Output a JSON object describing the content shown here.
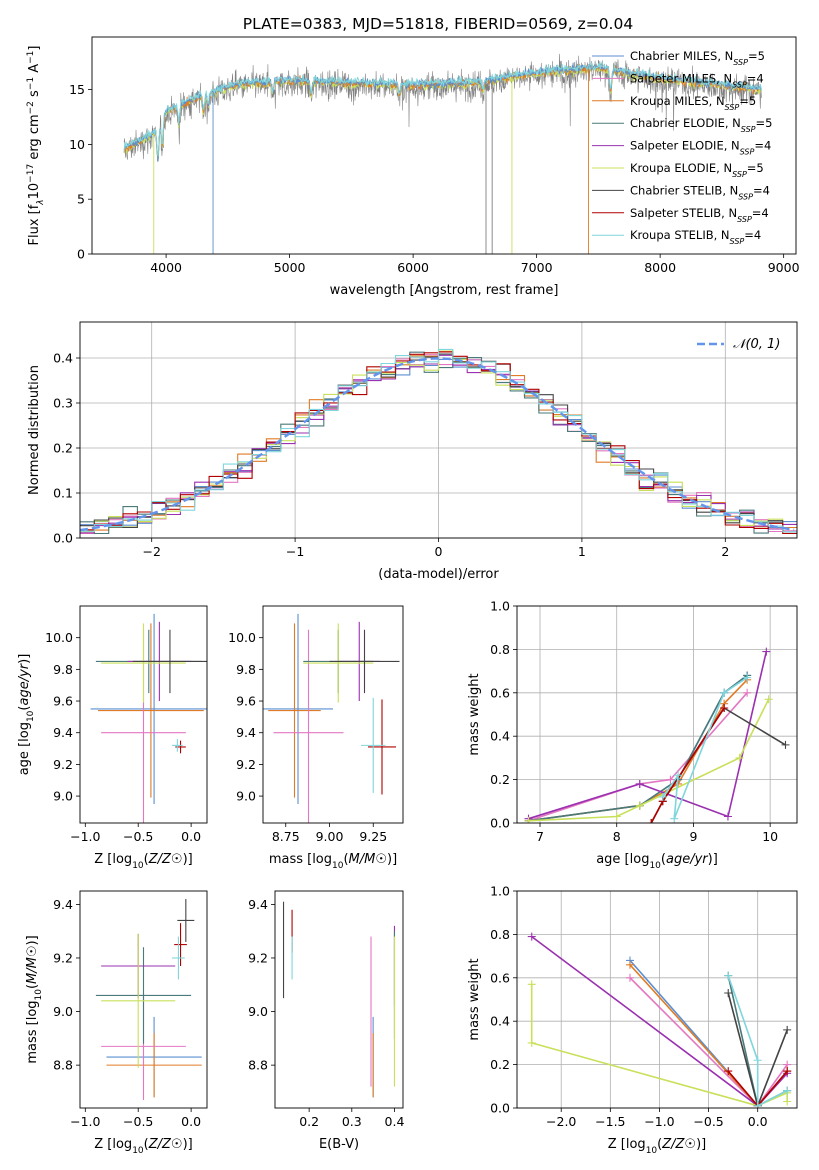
{
  "figure": {
    "title": "PLATE=0383, MJD=51818, FIBERID=0569, z=0.04"
  },
  "colors": {
    "chabrier_miles": "#5b8fd0",
    "salpeter_miles": "#e377c2",
    "kroupa_miles": "#e07b27",
    "chabrier_elodie": "#4a7a7a",
    "salpeter_elodie": "#9b30b0",
    "kroupa_elodie": "#c8e05a",
    "chabrier_stelib": "#444444",
    "salpeter_stelib": "#b00000",
    "kroupa_stelib": "#7fd6dc",
    "spectrum_data": "#808080",
    "normal_curve": "#6495ed",
    "grid": "#b0b0b0"
  },
  "legend": [
    {
      "label": "Chabrier MILES, N",
      "sub": "SSP",
      "tail": "=5",
      "color_key": "chabrier_miles"
    },
    {
      "label": "Salpeter MILES, N",
      "sub": "SSP",
      "tail": "=4",
      "color_key": "salpeter_miles"
    },
    {
      "label": "Kroupa MILES, N",
      "sub": "SSP",
      "tail": "=5",
      "color_key": "kroupa_miles"
    },
    {
      "label": "Chabrier ELODIE, N",
      "sub": "SSP",
      "tail": "=5",
      "color_key": "chabrier_elodie"
    },
    {
      "label": "Salpeter ELODIE, N",
      "sub": "SSP",
      "tail": "=4",
      "color_key": "salpeter_elodie"
    },
    {
      "label": "Kroupa ELODIE, N",
      "sub": "SSP",
      "tail": "=5",
      "color_key": "kroupa_elodie"
    },
    {
      "label": "Chabrier STELIB, N",
      "sub": "SSP",
      "tail": "=4",
      "color_key": "chabrier_stelib"
    },
    {
      "label": "Salpeter STELIB, N",
      "sub": "SSP",
      "tail": "=4",
      "color_key": "salpeter_stelib"
    },
    {
      "label": "Kroupa STELIB, N",
      "sub": "SSP",
      "tail": "=4",
      "color_key": "kroupa_stelib"
    }
  ],
  "chart_data": [
    {
      "id": "spectrum",
      "type": "line",
      "xlabel": "wavelength [Angstrom, rest frame]",
      "ylabel_parts": [
        "Flux [f",
        "λ",
        "10",
        "−17",
        " erg cm",
        "−2",
        " s",
        "−1",
        " A",
        "−1",
        "]"
      ],
      "xlim": [
        3400,
        9100
      ],
      "ylim": [
        0,
        19.8
      ],
      "xticks": [
        4000,
        5000,
        6000,
        7000,
        8000,
        9000
      ],
      "yticks": [
        0,
        5,
        10,
        15
      ],
      "continuum_anchors": [
        [
          3650,
          9.5
        ],
        [
          3900,
          11
        ],
        [
          4000,
          13
        ],
        [
          4300,
          14.5
        ],
        [
          4600,
          15.5
        ],
        [
          5000,
          15.8
        ],
        [
          5500,
          15.6
        ],
        [
          6000,
          15.4
        ],
        [
          6500,
          15.6
        ],
        [
          7000,
          16.5
        ],
        [
          7500,
          17
        ],
        [
          8000,
          16
        ],
        [
          8400,
          15.5
        ],
        [
          8820,
          15
        ]
      ],
      "dropouts": [
        {
          "x": 3900,
          "color_key": "kroupa_elodie"
        },
        {
          "x": 4380,
          "color_key": "chabrier_miles"
        },
        {
          "x": 6590,
          "color_key": "spectrum_data"
        },
        {
          "x": 6640,
          "color_key": "spectrum_data"
        },
        {
          "x": 6800,
          "color_key": "kroupa_elodie"
        },
        {
          "x": 7420,
          "color_key": "kroupa_miles"
        }
      ],
      "grid": false,
      "legend_position": "top-right"
    },
    {
      "id": "residuals",
      "type": "step",
      "xlabel": "(data-model)/error",
      "ylabel": "Normed distribution",
      "xlim": [
        -2.5,
        2.5
      ],
      "ylim": [
        0,
        0.48
      ],
      "xticks": [
        -2,
        -1,
        0,
        1,
        2
      ],
      "yticks": [
        0.0,
        0.1,
        0.2,
        0.3,
        0.4
      ],
      "bin_width": 0.1,
      "normal_label": "𝒩(0, 1)",
      "grid": true,
      "legend_position": "top-right"
    },
    {
      "id": "age_vs_Z",
      "type": "errorbar",
      "xlabel": "Z [log10(Z/Z☉)]",
      "ylabel": "age  [log10(age/yr)]",
      "xlim": [
        -1.05,
        0.15
      ],
      "ylim": [
        8.83,
        10.2
      ],
      "xticks": [
        -1.0,
        -0.5,
        0.0
      ],
      "yticks": [
        9.0,
        9.2,
        9.4,
        9.6,
        9.8,
        10.0
      ],
      "points": [
        {
          "color_key": "chabrier_miles",
          "x": -0.35,
          "xerr": 0.6,
          "y": 9.55,
          "yerr": 0.6
        },
        {
          "color_key": "kroupa_miles",
          "x": -0.38,
          "xerr": 0.5,
          "y": 9.54,
          "yerr": 0.55
        },
        {
          "color_key": "salpeter_miles",
          "x": -0.45,
          "xerr": 0.4,
          "y": 9.4,
          "yerr": 0.65
        },
        {
          "color_key": "chabrier_elodie",
          "x": -0.4,
          "xerr": 0.5,
          "y": 9.85,
          "yerr": 0.2
        },
        {
          "color_key": "salpeter_elodie",
          "x": -0.3,
          "xerr": 0.3,
          "y": 9.85,
          "yerr": 0.25
        },
        {
          "color_key": "kroupa_elodie",
          "x": -0.45,
          "xerr": 0.4,
          "y": 9.84,
          "yerr": 0.25
        },
        {
          "color_key": "chabrier_stelib",
          "x": -0.2,
          "xerr": 0.35,
          "y": 9.85,
          "yerr": 0.2
        },
        {
          "color_key": "salpeter_stelib",
          "x": -0.1,
          "xerr": 0.05,
          "y": 9.31,
          "yerr": 0.04
        },
        {
          "color_key": "kroupa_stelib",
          "x": -0.13,
          "xerr": 0.05,
          "y": 9.32,
          "yerr": 0.04
        }
      ]
    },
    {
      "id": "age_vs_mass",
      "type": "errorbar",
      "xlabel": "mass [log10(M/M☉)]",
      "ylabel": "",
      "xlim": [
        8.62,
        9.42
      ],
      "ylim": [
        8.83,
        10.2
      ],
      "xticks": [
        8.75,
        9.0,
        9.25
      ],
      "yticks": [
        9.0,
        9.2,
        9.4,
        9.6,
        9.8,
        10.0
      ],
      "points": [
        {
          "color_key": "chabrier_miles",
          "x": 8.82,
          "xerr": 0.2,
          "y": 9.55,
          "yerr": 0.6
        },
        {
          "color_key": "kroupa_miles",
          "x": 8.8,
          "xerr": 0.15,
          "y": 9.54,
          "yerr": 0.55
        },
        {
          "color_key": "salpeter_miles",
          "x": 8.88,
          "xerr": 0.2,
          "y": 9.4,
          "yerr": 0.65
        },
        {
          "color_key": "chabrier_elodie",
          "x": 9.05,
          "xerr": 0.2,
          "y": 9.85,
          "yerr": 0.2
        },
        {
          "color_key": "salpeter_elodie",
          "x": 9.17,
          "xerr": 0.12,
          "y": 9.85,
          "yerr": 0.25
        },
        {
          "color_key": "kroupa_elodie",
          "x": 9.05,
          "xerr": 0.2,
          "y": 9.84,
          "yerr": 0.25
        },
        {
          "color_key": "chabrier_stelib",
          "x": 9.2,
          "xerr": 0.2,
          "y": 9.85,
          "yerr": 0.2
        },
        {
          "color_key": "salpeter_stelib",
          "x": 9.3,
          "xerr": 0.08,
          "y": 9.31,
          "yerr": 0.3
        },
        {
          "color_key": "kroupa_stelib",
          "x": 9.25,
          "xerr": 0.07,
          "y": 9.32,
          "yerr": 0.3
        }
      ]
    },
    {
      "id": "weight_vs_age",
      "type": "line",
      "xlabel": "age  [log10(age/yr)]",
      "ylabel": "mass weight",
      "xlim": [
        6.7,
        10.35
      ],
      "ylim": [
        0,
        1.0
      ],
      "xticks": [
        7,
        8,
        9,
        10
      ],
      "yticks": [
        0.0,
        0.2,
        0.4,
        0.6,
        0.8,
        1.0
      ],
      "grid": true,
      "series": [
        {
          "color_key": "chabrier_miles",
          "x": [
            6.85,
            8.3,
            8.8,
            9.4,
            9.7
          ],
          "y": [
            0.01,
            0.08,
            0.2,
            0.6,
            0.68
          ]
        },
        {
          "color_key": "salpeter_miles",
          "x": [
            6.85,
            8.3,
            8.7,
            9.7
          ],
          "y": [
            0.01,
            0.18,
            0.2,
            0.6
          ]
        },
        {
          "color_key": "kroupa_miles",
          "x": [
            6.85,
            8.3,
            8.8,
            9.4,
            9.7
          ],
          "y": [
            0.01,
            0.08,
            0.18,
            0.55,
            0.66
          ]
        },
        {
          "color_key": "chabrier_elodie",
          "x": [
            6.85,
            8.3,
            8.8,
            9.4,
            9.7
          ],
          "y": [
            0.01,
            0.08,
            0.2,
            0.6,
            0.68
          ]
        },
        {
          "color_key": "salpeter_elodie",
          "x": [
            6.85,
            8.3,
            9.45,
            9.95
          ],
          "y": [
            0.02,
            0.18,
            0.03,
            0.79
          ]
        },
        {
          "color_key": "kroupa_elodie",
          "x": [
            6.85,
            8.0,
            8.3,
            9.6,
            9.98
          ],
          "y": [
            0.01,
            0.03,
            0.08,
            0.3,
            0.57
          ]
        },
        {
          "color_key": "chabrier_stelib",
          "x": [
            8.45,
            8.6,
            9.4,
            10.2
          ],
          "y": [
            0.0,
            0.1,
            0.53,
            0.36
          ]
        },
        {
          "color_key": "salpeter_stelib",
          "x": [
            8.45,
            8.6,
            9.4
          ],
          "y": [
            0.0,
            0.1,
            0.53
          ]
        },
        {
          "color_key": "kroupa_stelib",
          "x": [
            8.6,
            8.8,
            8.75,
            9.4,
            9.7
          ],
          "y": [
            0.12,
            0.22,
            0.02,
            0.6,
            0.67
          ]
        }
      ]
    },
    {
      "id": "mass_vs_Z",
      "type": "errorbar",
      "xlabel": "Z [log10(Z/Z☉)]",
      "ylabel": "mass [log10(M/M☉)]",
      "xlim": [
        -1.05,
        0.15
      ],
      "ylim": [
        8.64,
        9.45
      ],
      "xticks": [
        -1.0,
        -0.5,
        0.0
      ],
      "yticks": [
        8.8,
        9.0,
        9.2,
        9.4
      ],
      "points": [
        {
          "color_key": "chabrier_miles",
          "x": -0.35,
          "xerr": 0.45,
          "y": 8.83,
          "yerr": 0.15
        },
        {
          "color_key": "kroupa_miles",
          "x": -0.35,
          "xerr": 0.45,
          "y": 8.8,
          "yerr": 0.12
        },
        {
          "color_key": "salpeter_miles",
          "x": -0.45,
          "xerr": 0.4,
          "y": 8.87,
          "yerr": 0.2
        },
        {
          "color_key": "chabrier_elodie",
          "x": -0.45,
          "xerr": 0.45,
          "y": 9.06,
          "yerr": 0.18
        },
        {
          "color_key": "salpeter_elodie",
          "x": -0.5,
          "xerr": 0.35,
          "y": 9.17,
          "yerr": 0.12
        },
        {
          "color_key": "kroupa_elodie",
          "x": -0.5,
          "xerr": 0.35,
          "y": 9.04,
          "yerr": 0.25
        },
        {
          "color_key": "chabrier_stelib",
          "x": -0.05,
          "xerr": 0.08,
          "y": 9.34,
          "yerr": 0.08
        },
        {
          "color_key": "salpeter_stelib",
          "x": -0.1,
          "xerr": 0.06,
          "y": 9.25,
          "yerr": 0.08
        },
        {
          "color_key": "kroupa_stelib",
          "x": -0.12,
          "xerr": 0.06,
          "y": 9.2,
          "yerr": 0.08
        }
      ]
    },
    {
      "id": "mass_vs_ebv",
      "type": "errorbar",
      "xlabel": "E(B-V)",
      "ylabel": "",
      "xlim": [
        0.12,
        0.42
      ],
      "ylim": [
        8.64,
        9.45
      ],
      "xticks": [
        0.2,
        0.3,
        0.4
      ],
      "yticks": [
        8.8,
        9.0,
        9.2,
        9.4
      ],
      "points": [
        {
          "color_key": "chabrier_stelib",
          "x": 0.14,
          "xerr": 0,
          "y": 9.23,
          "yerr": 0.18
        },
        {
          "color_key": "salpeter_stelib",
          "x": 0.16,
          "xerr": 0,
          "y": 9.3,
          "yerr": 0.08
        },
        {
          "color_key": "kroupa_stelib",
          "x": 0.16,
          "xerr": 0,
          "y": 9.2,
          "yerr": 0.08
        },
        {
          "color_key": "salpeter_miles",
          "x": 0.345,
          "xerr": 0,
          "y": 9.0,
          "yerr": 0.28
        },
        {
          "color_key": "chabrier_miles",
          "x": 0.35,
          "xerr": 0,
          "y": 8.83,
          "yerr": 0.15
        },
        {
          "color_key": "kroupa_miles",
          "x": 0.35,
          "xerr": 0,
          "y": 8.8,
          "yerr": 0.12
        },
        {
          "color_key": "salpeter_elodie",
          "x": 0.4,
          "xerr": 0,
          "y": 9.17,
          "yerr": 0.15
        },
        {
          "color_key": "chabrier_elodie",
          "x": 0.4,
          "xerr": 0,
          "y": 9.1,
          "yerr": 0.2
        },
        {
          "color_key": "kroupa_elodie",
          "x": 0.4,
          "xerr": 0,
          "y": 9.0,
          "yerr": 0.28
        }
      ]
    },
    {
      "id": "weight_vs_Z",
      "type": "line",
      "xlabel": "Z [log10(Z/Z☉)]",
      "ylabel": "mass weight",
      "xlim": [
        -2.45,
        0.4
      ],
      "ylim": [
        0,
        1.0
      ],
      "xticks": [
        -2.0,
        -1.5,
        -1.0,
        -0.5,
        0.0
      ],
      "yticks": [
        0.0,
        0.2,
        0.4,
        0.6,
        0.8,
        1.0
      ],
      "grid": true,
      "series": [
        {
          "color_key": "chabrier_miles",
          "x": [
            -1.3,
            0.0,
            0.3
          ],
          "y": [
            0.68,
            0.01,
            0.17
          ]
        },
        {
          "color_key": "salpeter_miles",
          "x": [
            -1.3,
            0.0,
            0.3
          ],
          "y": [
            0.6,
            0.01,
            0.2
          ]
        },
        {
          "color_key": "kroupa_miles",
          "x": [
            -1.3,
            0.0,
            0.3
          ],
          "y": [
            0.66,
            0.01,
            0.17
          ]
        },
        {
          "color_key": "chabrier_elodie",
          "x": [
            -0.3,
            0.0,
            0.3
          ],
          "y": [
            0.61,
            0.01,
            0.08
          ]
        },
        {
          "color_key": "salpeter_elodie",
          "x": [
            -2.3,
            0.0,
            0.3
          ],
          "y": [
            0.79,
            0.01,
            0.16
          ]
        },
        {
          "color_key": "kroupa_elodie",
          "x": [
            -2.3,
            -2.3,
            0.0,
            0.3,
            0.3
          ],
          "y": [
            0.57,
            0.3,
            0.01,
            0.07,
            0.03
          ]
        },
        {
          "color_key": "chabrier_stelib",
          "x": [
            -0.3,
            0.0,
            0.3
          ],
          "y": [
            0.53,
            0.01,
            0.36
          ]
        },
        {
          "color_key": "salpeter_stelib",
          "x": [
            -0.3,
            0.0,
            0.3
          ],
          "y": [
            0.17,
            0.01,
            0.17
          ]
        },
        {
          "color_key": "kroupa_stelib",
          "x": [
            -0.3,
            0.0,
            0.0,
            0.3
          ],
          "y": [
            0.61,
            0.22,
            0.01,
            0.08
          ]
        }
      ]
    }
  ]
}
